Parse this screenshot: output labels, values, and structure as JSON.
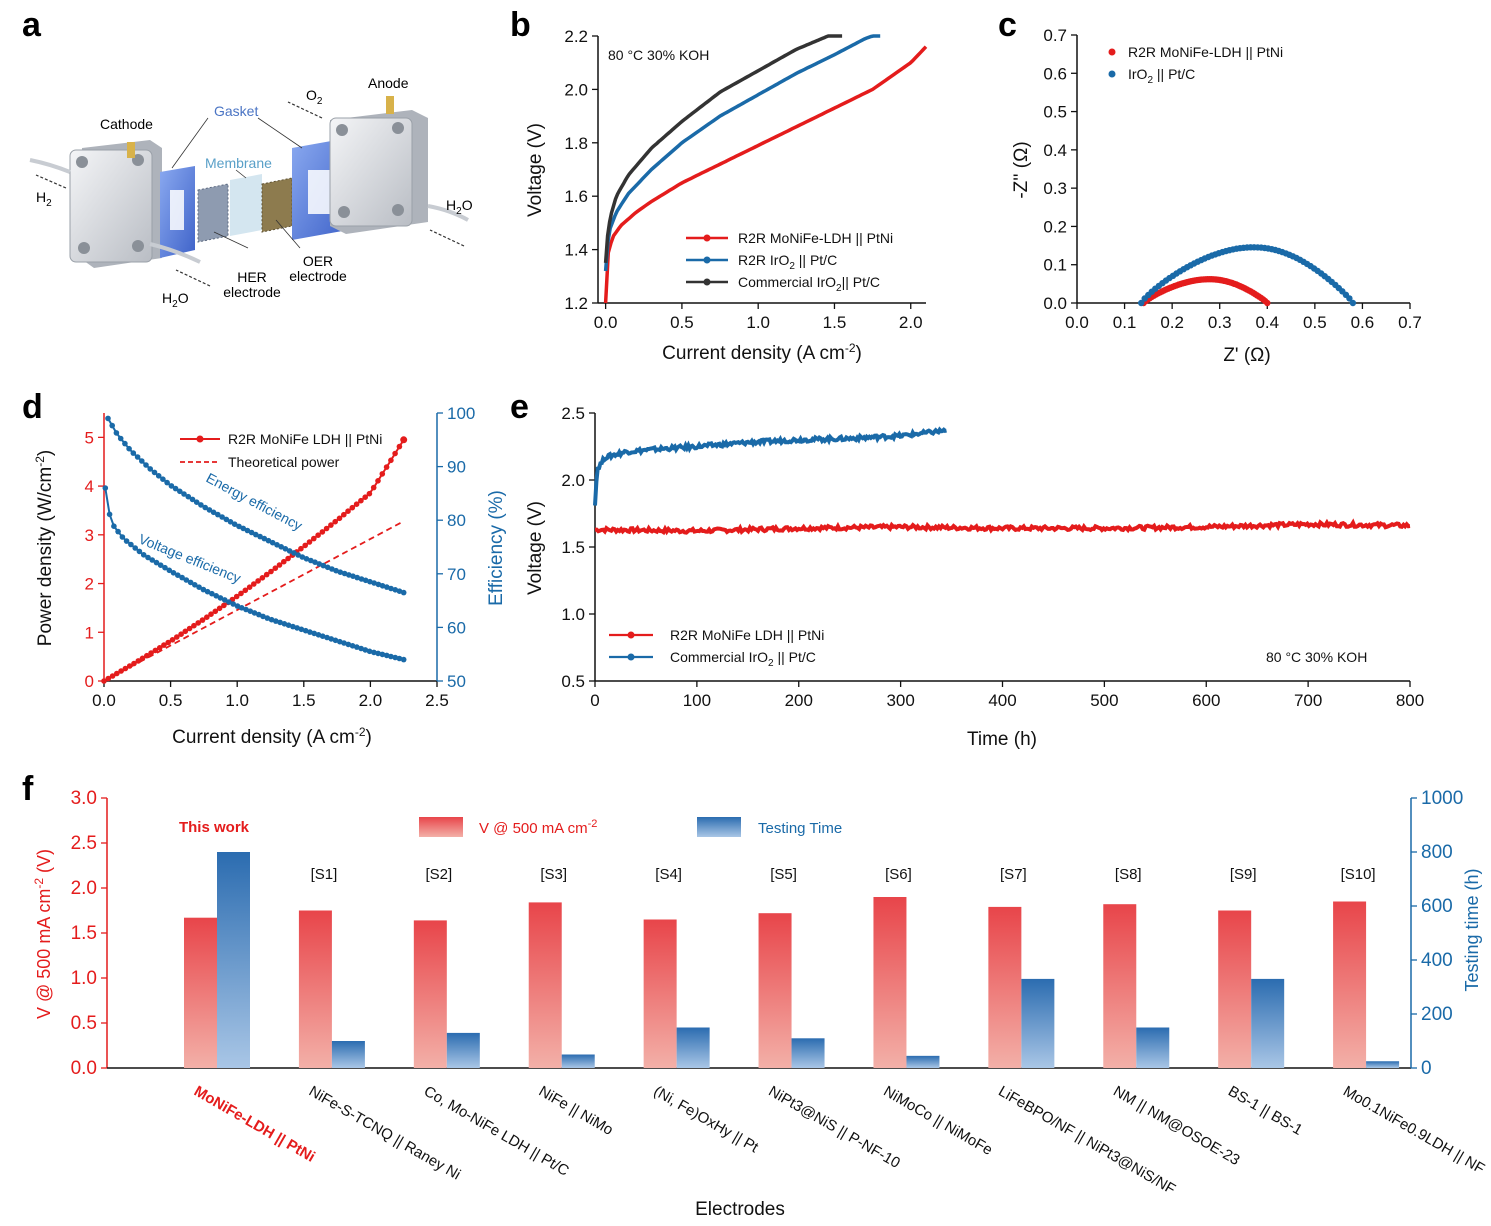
{
  "figure_labels": [
    "a",
    "b",
    "c",
    "d",
    "e",
    "f"
  ],
  "colors": {
    "red": "#e41c1c",
    "blue": "#1a6aa8",
    "black": "#333333",
    "bar_red_top": "#e8454a",
    "bar_red_bottom": "#f3b0a8",
    "bar_blue_top": "#2b6cb0",
    "bar_blue_bottom": "#a9c6e6"
  },
  "panel_a": {
    "labels": {
      "cathode": "Cathode",
      "anode": "Anode",
      "gasket": "Gasket",
      "membrane": "Membrane",
      "h2": "H",
      "h2_sub": "2",
      "o2": "O",
      "o2_sub": "2",
      "h2o_left": "H",
      "h2o_left_sub": "2",
      "h2o_left_end": "O",
      "h2o_right": "H",
      "h2o_right_sub": "2",
      "h2o_right_end": "O",
      "her1": "HER",
      "her2": "electrode",
      "oer1": "OER",
      "oer2": "electrode"
    }
  },
  "chart_data": [
    {
      "id": "b",
      "type": "line",
      "annotation": "80 °C 30% KOH",
      "xlabel": "Current density (A cm",
      "xlabel_sup": "-2",
      "xlabel_end": ")",
      "ylabel": "Voltage (V)",
      "xlim": [
        -0.05,
        2.1
      ],
      "ylim": [
        1.2,
        2.2
      ],
      "xticks": [
        "0.0",
        "0.5",
        "1.0",
        "1.5",
        "2.0"
      ],
      "xtick_values": [
        0,
        0.5,
        1.0,
        1.5,
        2.0
      ],
      "yticks": [
        "1.2",
        "1.4",
        "1.6",
        "1.8",
        "2.0",
        "2.2"
      ],
      "ytick_values": [
        1.2,
        1.4,
        1.6,
        1.8,
        2.0,
        2.2
      ],
      "legend": [
        {
          "pre": "R2R MoNiFe-LDH || PtNi",
          "sub": "",
          "post": "",
          "color": "red"
        },
        {
          "pre": "R2R IrO",
          "sub": "2",
          "post": " || Pt/C",
          "color": "blue"
        },
        {
          "pre": "Commercial IrO",
          "sub": "2",
          "post": "|| Pt/C",
          "color": "black"
        }
      ],
      "series": [
        {
          "name": "R2R MoNiFe-LDH || PtNi",
          "color": "red",
          "x": [
            0,
            0.005,
            0.02,
            0.05,
            0.1,
            0.2,
            0.3,
            0.5,
            0.75,
            1.0,
            1.25,
            1.5,
            1.75,
            2.0,
            2.1
          ],
          "y": [
            1.2,
            1.33,
            1.4,
            1.45,
            1.49,
            1.54,
            1.58,
            1.65,
            1.72,
            1.79,
            1.86,
            1.93,
            2.0,
            2.1,
            2.16
          ]
        },
        {
          "name": "R2R IrO2 || Pt/C",
          "color": "blue",
          "x": [
            0,
            0.01,
            0.03,
            0.07,
            0.15,
            0.3,
            0.5,
            0.75,
            1.0,
            1.25,
            1.5,
            1.7,
            1.8
          ],
          "y": [
            1.32,
            1.41,
            1.48,
            1.54,
            1.61,
            1.7,
            1.8,
            1.9,
            1.98,
            2.06,
            2.13,
            2.19,
            2.21
          ]
        },
        {
          "name": "Commercial IrO2 || Pt/C",
          "color": "black",
          "x": [
            0,
            0.01,
            0.03,
            0.07,
            0.15,
            0.3,
            0.5,
            0.75,
            1.0,
            1.25,
            1.5,
            1.55
          ],
          "y": [
            1.35,
            1.44,
            1.52,
            1.6,
            1.68,
            1.78,
            1.88,
            1.99,
            2.07,
            2.15,
            2.21,
            2.22
          ]
        }
      ]
    },
    {
      "id": "c",
      "type": "scatter",
      "xlabel": "Z' (Ω)",
      "ylabel": "-Z'' (Ω)",
      "xlim": [
        0,
        0.7
      ],
      "ylim": [
        0,
        0.7
      ],
      "xticks": [
        "0.0",
        "0.1",
        "0.2",
        "0.3",
        "0.4",
        "0.5",
        "0.6",
        "0.7"
      ],
      "xtick_values": [
        0,
        0.1,
        0.2,
        0.3,
        0.4,
        0.5,
        0.6,
        0.7
      ],
      "yticks": [
        "0.0",
        "0.1",
        "0.2",
        "0.3",
        "0.4",
        "0.5",
        "0.6",
        "0.7"
      ],
      "ytick_values": [
        0,
        0.1,
        0.2,
        0.3,
        0.4,
        0.5,
        0.6,
        0.7
      ],
      "legend": [
        {
          "pre": "R2R MoNiFe-LDH || PtNi",
          "sub": "",
          "post": "",
          "color": "red"
        },
        {
          "pre": "IrO",
          "sub": "2",
          "post": " || Pt/C",
          "color": "blue"
        }
      ],
      "series": [
        {
          "name": "R2R MoNiFe-LDH || PtNi",
          "color": "red",
          "arc": {
            "z_start": 0.14,
            "z_end": 0.4,
            "peak": 0.062
          }
        },
        {
          "name": "IrO2 || Pt/C",
          "color": "blue",
          "arc": {
            "z_start": 0.135,
            "z_end": 0.58,
            "peak": 0.145
          }
        }
      ]
    },
    {
      "id": "d",
      "type": "line",
      "xlabel": "Current density (A cm",
      "xlabel_sup": "-2",
      "xlabel_end": ")",
      "ylabel": "Power density (W/cm",
      "ylabel_sup": "-2",
      "ylabel_end": ")",
      "ylabel_right": "Efficiency (%)",
      "xlim": [
        0,
        2.5
      ],
      "ylim": [
        0,
        5.5
      ],
      "ylim_right": [
        50,
        100
      ],
      "xticks": [
        "0.0",
        "0.5",
        "1.0",
        "1.5",
        "2.0",
        "2.5"
      ],
      "xtick_values": [
        0,
        0.5,
        1.0,
        1.5,
        2.0,
        2.5
      ],
      "yticks": [
        "0",
        "1",
        "2",
        "3",
        "4",
        "5"
      ],
      "ytick_values": [
        0,
        1,
        2,
        3,
        4,
        5
      ],
      "yticks_right": [
        "50",
        "60",
        "70",
        "80",
        "90",
        "100"
      ],
      "ytick_values_right": [
        50,
        60,
        70,
        80,
        90,
        100
      ],
      "legend": [
        {
          "pre": "R2R MoNiFe LDH || PtNi",
          "color": "red",
          "style": "marker"
        },
        {
          "pre": "Theoretical power",
          "color": "red",
          "style": "dashed"
        }
      ],
      "annotations": [
        "Energy efficiency",
        "Voltage efficiency"
      ],
      "series": [
        {
          "name": "R2R MoNiFe LDH || PtNi",
          "axis": "left",
          "color": "red",
          "x": [
            0,
            0.25,
            0.5,
            0.75,
            1.0,
            1.25,
            1.5,
            1.75,
            2.0,
            2.25
          ],
          "y": [
            0,
            0.4,
            0.82,
            1.27,
            1.74,
            2.24,
            2.76,
            3.3,
            3.86,
            4.95
          ]
        },
        {
          "name": "Theoretical power",
          "axis": "left",
          "color": "red",
          "dashed": true,
          "x": [
            0,
            2.25
          ],
          "y": [
            0,
            3.28
          ]
        },
        {
          "name": "Energy efficiency",
          "axis": "right",
          "color": "blue",
          "x": [
            0.03,
            0.1,
            0.2,
            0.35,
            0.5,
            0.75,
            1.0,
            1.25,
            1.5,
            1.75,
            2.0,
            2.25
          ],
          "y": [
            99,
            96,
            93,
            89.5,
            86.5,
            82.5,
            79,
            76,
            73,
            70.5,
            68.5,
            66.5
          ]
        },
        {
          "name": "Voltage efficiency",
          "axis": "right",
          "color": "blue",
          "x": [
            0.01,
            0.03,
            0.07,
            0.15,
            0.3,
            0.5,
            0.75,
            1.0,
            1.25,
            1.5,
            1.75,
            2.0,
            2.25
          ],
          "y": [
            86,
            82,
            79,
            76.5,
            73.5,
            70.5,
            67,
            64,
            61.5,
            59.5,
            57.5,
            55.5,
            54
          ]
        }
      ]
    },
    {
      "id": "e",
      "type": "line",
      "annotation": "80 °C 30% KOH",
      "xlabel": "Time (h)",
      "ylabel": "Voltage (V)",
      "xlim": [
        0,
        800
      ],
      "ylim": [
        0.5,
        2.5
      ],
      "xticks": [
        "0",
        "100",
        "200",
        "300",
        "400",
        "500",
        "600",
        "700",
        "800"
      ],
      "xtick_values": [
        0,
        100,
        200,
        300,
        400,
        500,
        600,
        700,
        800
      ],
      "yticks": [
        "0.5",
        "1.0",
        "1.5",
        "2.0",
        "2.5"
      ],
      "ytick_values": [
        0.5,
        1.0,
        1.5,
        2.0,
        2.5
      ],
      "legend": [
        {
          "pre": "R2R MoNiFe LDH || PtNi",
          "sub": "",
          "post": "",
          "color": "red"
        },
        {
          "pre": "Commercial IrO",
          "sub": "2",
          "post": " || Pt/C",
          "color": "blue"
        }
      ],
      "series": [
        {
          "name": "R2R MoNiFe LDH || PtNi",
          "color": "red",
          "x": [
            0,
            100,
            200,
            300,
            400,
            500,
            600,
            700,
            800
          ],
          "y": [
            1.63,
            1.62,
            1.64,
            1.65,
            1.64,
            1.64,
            1.65,
            1.67,
            1.66
          ]
        },
        {
          "name": "Commercial IrO2 || Pt/C",
          "color": "blue",
          "x": [
            0,
            2,
            10,
            30,
            60,
            100,
            150,
            200,
            250,
            300,
            345
          ],
          "y": [
            1.81,
            2.08,
            2.17,
            2.21,
            2.23,
            2.25,
            2.28,
            2.3,
            2.31,
            2.33,
            2.37
          ]
        }
      ]
    },
    {
      "id": "f",
      "type": "bar",
      "xlabel": "Electrodes",
      "ylabel": "V @ 500 mA cm",
      "ylabel_sup": "-2",
      "ylabel_end": " (V)",
      "ylabel_right": "Testing time (h)",
      "ylim": [
        0,
        3.0
      ],
      "ylim_right": [
        0,
        1000
      ],
      "yticks": [
        "0.0",
        "0.5",
        "1.0",
        "1.5",
        "2.0",
        "2.5",
        "3.0"
      ],
      "ytick_values": [
        0,
        0.5,
        1.0,
        1.5,
        2.0,
        2.5,
        3.0
      ],
      "yticks_right": [
        "0",
        "200",
        "400",
        "600",
        "800",
        "1000"
      ],
      "ytick_values_right": [
        0,
        200,
        400,
        600,
        800,
        1000
      ],
      "legend": [
        {
          "pre": "V @ 500 mA cm",
          "sup": "-2",
          "color": "red"
        },
        {
          "pre": "Testing Time",
          "color": "blue"
        }
      ],
      "highlight": "This work",
      "refs": [
        "",
        "[S1]",
        "[S2]",
        "[S3]",
        "[S4]",
        "[S5]",
        "[S6]",
        "[S7]",
        "[S8]",
        "[S9]",
        "[S10]"
      ],
      "categories": [
        "MoNiFe-LDH || PtNi",
        "NiFe-S-TCNQ || Raney Ni",
        "Co, Mo-NiFe LDH || Pt/C",
        "NiFe || NiMo",
        "(Ni, Fe)OxHy || Pt",
        "NiPt3@NiS || P-NF-10",
        "NiMoCo || NiMoFe",
        "LiFeBPO/NF || NiPt3@NiS/NF",
        "NM || NM@OSOE-23",
        "BS-1 || BS-1",
        "Mo0.1NiFe0.9LDH || NF"
      ],
      "series": [
        {
          "name": "V @ 500 mA cm-2",
          "axis": "left",
          "values": [
            1.67,
            1.75,
            1.64,
            1.84,
            1.65,
            1.72,
            1.9,
            1.79,
            1.82,
            1.75,
            1.85
          ]
        },
        {
          "name": "Testing Time",
          "axis": "right",
          "values": [
            800,
            100,
            130,
            50,
            150,
            110,
            45,
            330,
            150,
            330,
            25
          ]
        }
      ]
    }
  ]
}
